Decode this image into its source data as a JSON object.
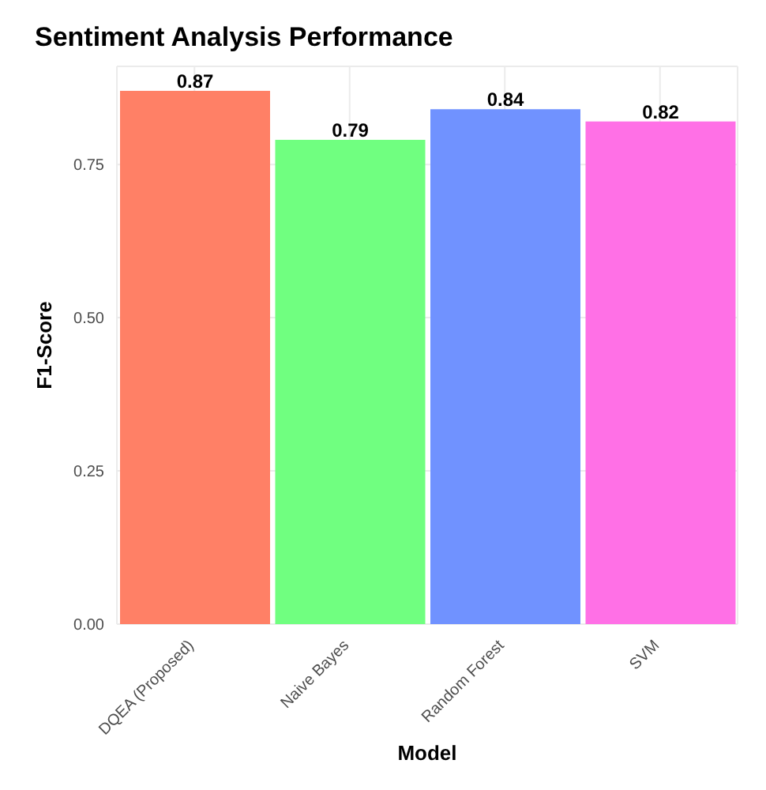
{
  "chart_data": {
    "type": "bar",
    "title": "Sentiment Analysis Performance",
    "xlabel": "Model",
    "ylabel": "F1-Score",
    "categories": [
      "DQEA (Proposed)",
      "Naive Bayes",
      "Random Forest",
      "SVM"
    ],
    "values": [
      0.87,
      0.79,
      0.84,
      0.82
    ],
    "colors": [
      "#ff8066",
      "#70ff80",
      "#7092ff",
      "#ff70e6"
    ],
    "ylim": [
      0,
      0.91
    ],
    "yticks": [
      {
        "value": 0,
        "label": "0.00"
      },
      {
        "value": 0.25,
        "label": "0.25"
      },
      {
        "value": 0.5,
        "label": "0.50"
      },
      {
        "value": 0.75,
        "label": "0.75"
      }
    ],
    "grid": true,
    "data_labels": true
  }
}
